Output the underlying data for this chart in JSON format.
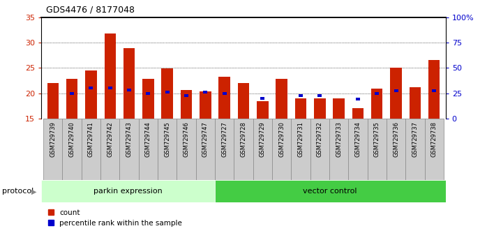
{
  "title": "GDS4476 / 8177048",
  "categories": [
    "GSM729739",
    "GSM729740",
    "GSM729741",
    "GSM729742",
    "GSM729743",
    "GSM729744",
    "GSM729745",
    "GSM729746",
    "GSM729747",
    "GSM729727",
    "GSM729728",
    "GSM729729",
    "GSM729730",
    "GSM729731",
    "GSM729732",
    "GSM729733",
    "GSM729734",
    "GSM729735",
    "GSM729736",
    "GSM729737",
    "GSM729738"
  ],
  "bar_values": [
    22.0,
    22.8,
    24.5,
    31.8,
    28.9,
    22.8,
    24.9,
    20.7,
    20.3,
    23.2,
    22.0,
    18.5,
    22.8,
    19.0,
    19.0,
    19.0,
    17.0,
    20.9,
    25.0,
    21.2,
    26.5
  ],
  "percentile_values": [
    null,
    20.0,
    21.0,
    21.0,
    20.7,
    20.0,
    20.2,
    19.5,
    20.2,
    20.0,
    null,
    19.0,
    null,
    19.5,
    19.5,
    null,
    18.8,
    20.0,
    20.5,
    null,
    20.5
  ],
  "parkin_count": 9,
  "ymin": 15,
  "ymax": 35,
  "yticks_left": [
    15,
    20,
    25,
    30,
    35
  ],
  "bar_color": "#cc2200",
  "percentile_color": "#0000cc",
  "parkin_color": "#ccffcc",
  "vector_color": "#44cc44",
  "label_bg_color": "#cccccc",
  "label_border_color": "#888888",
  "protocol_label": "protocol",
  "parkin_label": "parkin expression",
  "vector_label": "vector control",
  "legend_count": "count",
  "legend_percentile": "percentile rank within the sample"
}
